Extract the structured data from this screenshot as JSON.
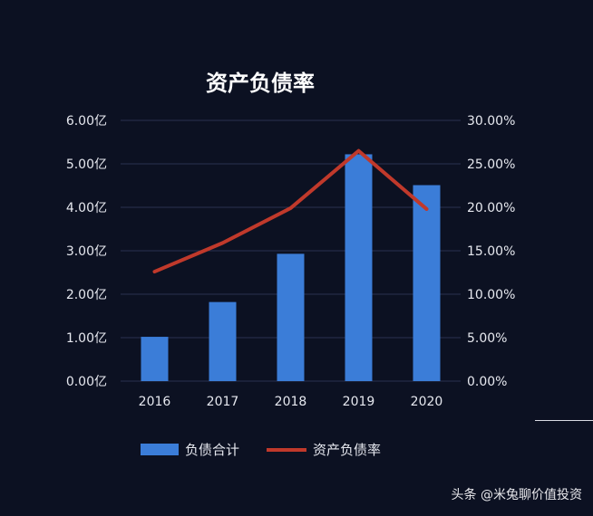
{
  "chart_data": {
    "type": "bar",
    "title": "资产负债率",
    "categories": [
      "2016",
      "2017",
      "2018",
      "2019",
      "2020"
    ],
    "series": [
      {
        "name": "负债合计",
        "type": "bar",
        "axis": "left",
        "values": [
          1.02,
          1.82,
          2.93,
          5.22,
          4.51
        ]
      },
      {
        "name": "资产负债率",
        "type": "line",
        "axis": "right",
        "values": [
          12.6,
          15.9,
          19.9,
          26.5,
          19.8
        ]
      }
    ],
    "y_left": {
      "ylim": [
        0,
        6
      ],
      "ticks": [
        "0.00亿",
        "1.00亿",
        "2.00亿",
        "3.00亿",
        "4.00亿",
        "5.00亿",
        "6.00亿"
      ]
    },
    "y_right": {
      "ylim": [
        0,
        30
      ],
      "ticks": [
        "0.00%",
        "5.00%",
        "10.00%",
        "15.00%",
        "20.00%",
        "25.00%",
        "30.00%"
      ]
    },
    "grid": true,
    "legend_position": "bottom",
    "colors": {
      "bar": "#3b7dd8",
      "line": "#c0392b",
      "background": "#0c1122",
      "grid": "#2a3150",
      "text": "#e6e8ef"
    }
  },
  "watermark": "头条 @米兔聊价值投资"
}
